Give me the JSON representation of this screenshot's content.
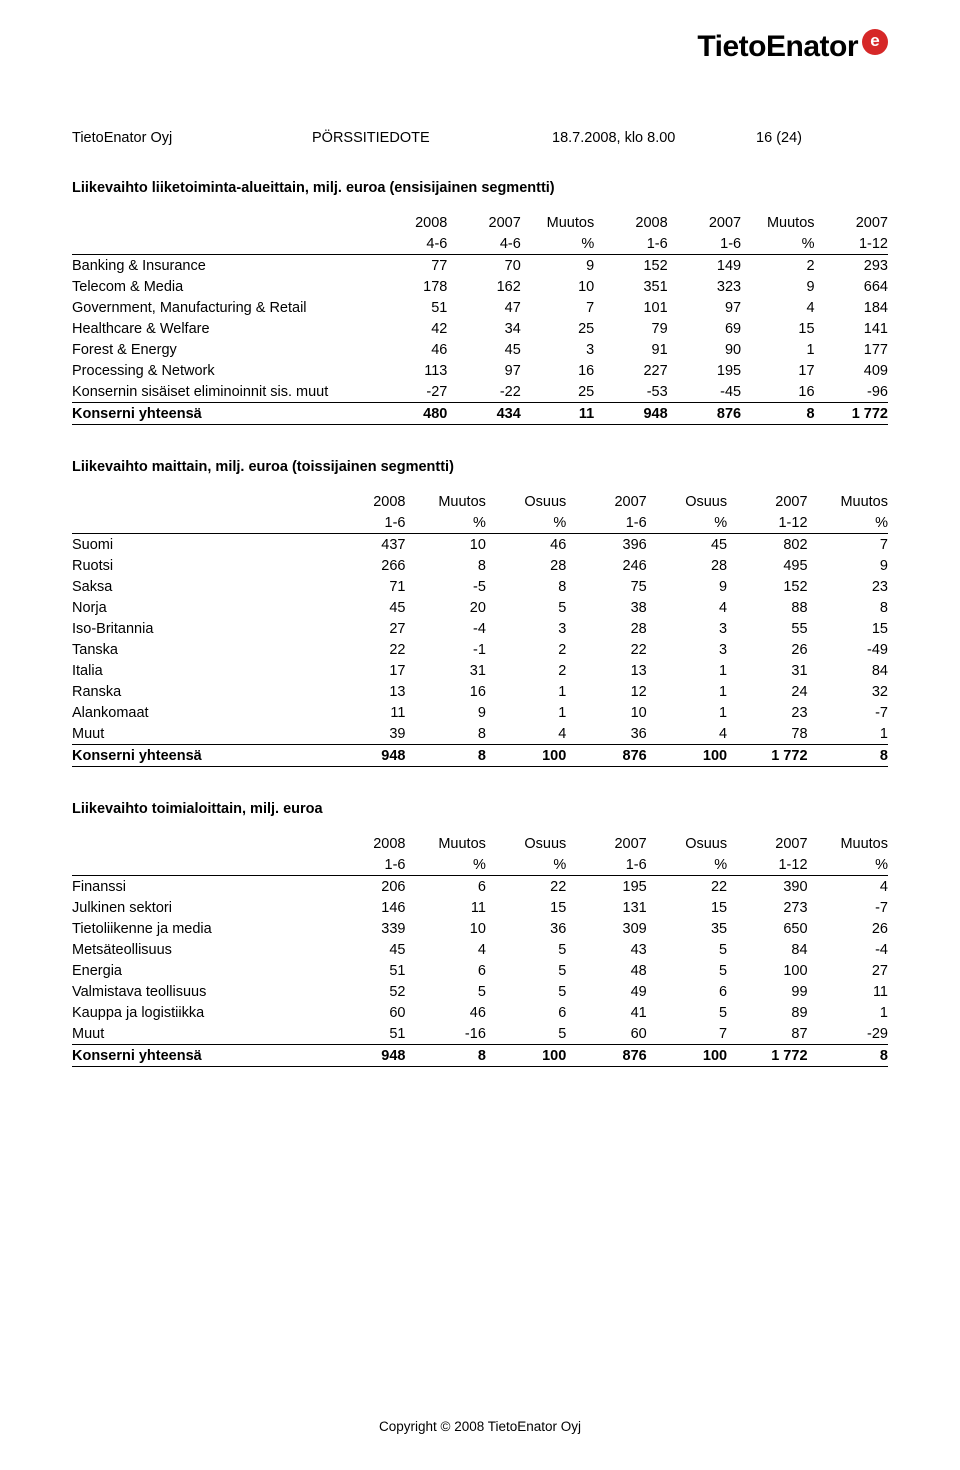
{
  "logo": {
    "text": "TietoEnator"
  },
  "header": {
    "company": "TietoEnator Oyj",
    "doc_type": "PÖRSSITIEDOTE",
    "date": "18.7.2008, klo 8.00",
    "page": "16 (24)"
  },
  "footer": "Copyright © 2008 TietoEnator Oyj",
  "table1": {
    "title": "Liikevaihto liiketoiminta-alueittain, milj. euroa (ensisijainen segmentti)",
    "head_top": [
      "",
      "2008",
      "2007",
      "Muutos",
      "2008",
      "2007",
      "Muutos",
      "2007"
    ],
    "head_bot": [
      "",
      "4-6",
      "4-6",
      "%",
      "1-6",
      "1-6",
      "%",
      "1-12"
    ],
    "rows": [
      [
        "Banking & Insurance",
        "77",
        "70",
        "9",
        "152",
        "149",
        "2",
        "293"
      ],
      [
        "Telecom & Media",
        "178",
        "162",
        "10",
        "351",
        "323",
        "9",
        "664"
      ],
      [
        "Government, Manufacturing & Retail",
        "51",
        "47",
        "7",
        "101",
        "97",
        "4",
        "184"
      ],
      [
        "Healthcare & Welfare",
        "42",
        "34",
        "25",
        "79",
        "69",
        "15",
        "141"
      ],
      [
        "Forest & Energy",
        "46",
        "45",
        "3",
        "91",
        "90",
        "1",
        "177"
      ],
      [
        "Processing & Network",
        "113",
        "97",
        "16",
        "227",
        "195",
        "17",
        "409"
      ],
      [
        "Konsernin sisäiset eliminoinnit sis. muut",
        "-27",
        "-22",
        "25",
        "-53",
        "-45",
        "16",
        "-96"
      ]
    ],
    "total": [
      "Konserni yhteensä",
      "480",
      "434",
      "11",
      "948",
      "876",
      "8",
      "1 772"
    ]
  },
  "table2": {
    "title": "Liikevaihto maittain, milj. euroa (toissijainen segmentti)",
    "head_top": [
      "",
      "2008",
      "Muutos",
      "Osuus",
      "2007",
      "Osuus",
      "2007",
      "Muutos"
    ],
    "head_bot": [
      "",
      "1-6",
      "%",
      "%",
      "1-6",
      "%",
      "1-12",
      "%"
    ],
    "rows": [
      [
        "Suomi",
        "437",
        "10",
        "46",
        "396",
        "45",
        "802",
        "7"
      ],
      [
        "Ruotsi",
        "266",
        "8",
        "28",
        "246",
        "28",
        "495",
        "9"
      ],
      [
        "Saksa",
        "71",
        "-5",
        "8",
        "75",
        "9",
        "152",
        "23"
      ],
      [
        "Norja",
        "45",
        "20",
        "5",
        "38",
        "4",
        "88",
        "8"
      ],
      [
        "Iso-Britannia",
        "27",
        "-4",
        "3",
        "28",
        "3",
        "55",
        "15"
      ],
      [
        "Tanska",
        "22",
        "-1",
        "2",
        "22",
        "3",
        "26",
        "-49"
      ],
      [
        "Italia",
        "17",
        "31",
        "2",
        "13",
        "1",
        "31",
        "84"
      ],
      [
        "Ranska",
        "13",
        "16",
        "1",
        "12",
        "1",
        "24",
        "32"
      ],
      [
        "Alankomaat",
        "11",
        "9",
        "1",
        "10",
        "1",
        "23",
        "-7"
      ],
      [
        "Muut",
        "39",
        "8",
        "4",
        "36",
        "4",
        "78",
        "1"
      ]
    ],
    "total": [
      "Konserni yhteensä",
      "948",
      "8",
      "100",
      "876",
      "100",
      "1 772",
      "8"
    ]
  },
  "table3": {
    "title": "Liikevaihto toimialoittain, milj. euroa",
    "head_top": [
      "",
      "2008",
      "Muutos",
      "Osuus",
      "2007",
      "Osuus",
      "2007",
      "Muutos"
    ],
    "head_bot": [
      "",
      "1-6",
      "%",
      "%",
      "1-6",
      "%",
      "1-12",
      "%"
    ],
    "rows": [
      [
        "Finanssi",
        "206",
        "6",
        "22",
        "195",
        "22",
        "390",
        "4"
      ],
      [
        "Julkinen sektori",
        "146",
        "11",
        "15",
        "131",
        "15",
        "273",
        "-7"
      ],
      [
        "Tietoliikenne ja media",
        "339",
        "10",
        "36",
        "309",
        "35",
        "650",
        "26"
      ],
      [
        "Metsäteollisuus",
        "45",
        "4",
        "5",
        "43",
        "5",
        "84",
        "-4"
      ],
      [
        "Energia",
        "51",
        "6",
        "5",
        "48",
        "5",
        "100",
        "27"
      ],
      [
        "Valmistava teollisuus",
        "52",
        "5",
        "5",
        "49",
        "6",
        "99",
        "11"
      ],
      [
        "Kauppa ja logistiikka",
        "60",
        "46",
        "6",
        "41",
        "5",
        "89",
        "1"
      ],
      [
        "Muut",
        "51",
        "-16",
        "5",
        "60",
        "7",
        "87",
        "-29"
      ]
    ],
    "total": [
      "Konserni yhteensä",
      "948",
      "8",
      "100",
      "876",
      "100",
      "1 772",
      "8"
    ]
  }
}
